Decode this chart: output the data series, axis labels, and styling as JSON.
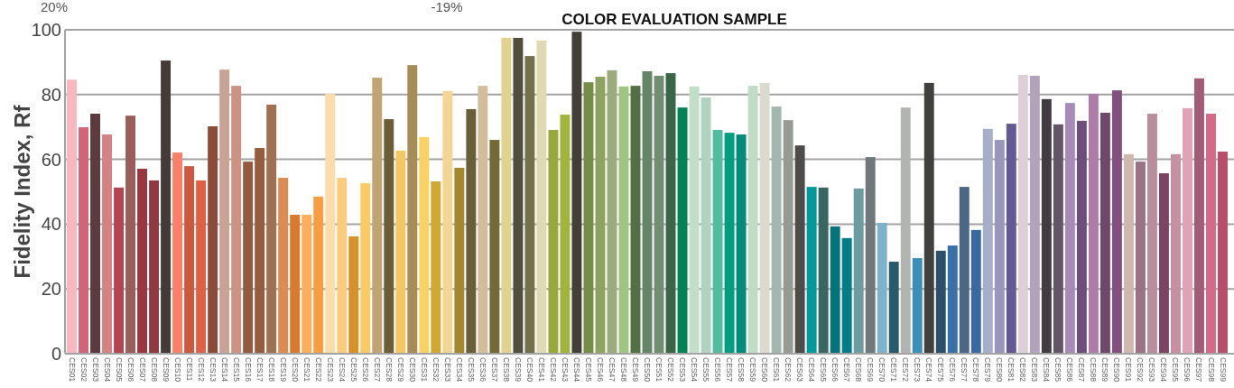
{
  "chart_data": {
    "type": "bar",
    "title": "COLOR EVALUATION SAMPLE",
    "ylabel": "Fidelity Index, Rf",
    "annotations": [
      "20%",
      "-19%"
    ],
    "categories": [
      "CES01",
      "CES02",
      "CES03",
      "CES04",
      "CES05",
      "CES06",
      "CES07",
      "CES08",
      "CES09",
      "CES10",
      "CES11",
      "CES12",
      "CES13",
      "CES14",
      "CES15",
      "CES16",
      "CES17",
      "CES18",
      "CES19",
      "CES20",
      "CES21",
      "CES22",
      "CES23",
      "CES24",
      "CES25",
      "CES26",
      "CES27",
      "CES28",
      "CES29",
      "CES30",
      "CES31",
      "CES32",
      "CES33",
      "CES34",
      "CES35",
      "CES36",
      "CES37",
      "CES38",
      "CES39",
      "CES40",
      "CES41",
      "CES42",
      "CES43",
      "CES44",
      "CES45",
      "CES46",
      "CES47",
      "CES48",
      "CES49",
      "CES50",
      "CES51",
      "CES52",
      "CES53",
      "CES54",
      "CES55",
      "CES56",
      "CES57",
      "CES58",
      "CES59",
      "CES60",
      "CES61",
      "CES62",
      "CES63",
      "CES64",
      "CES65",
      "CES66",
      "CES67",
      "CES68",
      "CES69",
      "CES70",
      "CES71",
      "CES72",
      "CES73",
      "CES74",
      "CES75",
      "CES76",
      "CES77",
      "CES78",
      "CES79",
      "CES80",
      "CES81",
      "CES82",
      "CES83",
      "CES84",
      "CES85",
      "CES86",
      "CES87",
      "CES88",
      "CES89",
      "CES90",
      "CES91",
      "CES92",
      "CES93",
      "CES94",
      "CES95",
      "CES96",
      "CES97",
      "CES98",
      "CES99"
    ],
    "values": [
      84.6,
      69.9,
      74.1,
      67.7,
      51.3,
      73.5,
      57.1,
      53.5,
      90.5,
      62.1,
      57.9,
      53.5,
      70.2,
      87.7,
      82.7,
      59.3,
      63.5,
      76.9,
      54.3,
      42.9,
      42.9,
      48.5,
      80.2,
      54.3,
      36.2,
      52.6,
      85.2,
      72.4,
      62.7,
      89.1,
      66.9,
      53.2,
      81.1,
      57.4,
      75.5,
      82.7,
      66.0,
      97.5,
      97.5,
      91.9,
      96.7,
      69.1,
      73.8,
      99.4,
      83.8,
      85.5,
      87.5,
      82.5,
      82.7,
      87.2,
      85.8,
      86.6,
      76.0,
      82.5,
      79.1,
      69.1,
      68.2,
      67.7,
      82.7,
      83.6,
      76.3,
      72.1,
      64.3,
      51.5,
      51.3,
      39.3,
      35.7,
      51.0,
      60.7,
      40.4,
      28.4,
      76.0,
      29.5,
      83.6,
      31.8,
      33.4,
      51.5,
      38.2,
      69.4,
      66.0,
      71.0,
      86.1,
      85.8,
      78.6,
      70.8,
      77.4,
      71.9,
      80.2,
      74.4,
      81.3,
      61.6,
      59.3,
      74.1,
      55.7,
      61.6,
      75.8,
      85.0,
      74.1,
      62.4
    ],
    "colors": [
      "#f9b8c0",
      "#d06478",
      "#5c3a3e",
      "#d68282",
      "#b44452",
      "#9a5e5a",
      "#9a3640",
      "#8e3a40",
      "#443a38",
      "#fc8068",
      "#cc5840",
      "#e06046",
      "#8a4c38",
      "#c8a294",
      "#cc9480",
      "#925a40",
      "#965c3e",
      "#a07052",
      "#dc8c52",
      "#da7a2e",
      "#fcae58",
      "#f89e42",
      "#fcdcaa",
      "#fccc7c",
      "#d89028",
      "#fcca64",
      "#c0a474",
      "#6c5c38",
      "#f6c660",
      "#a88c58",
      "#f8d262",
      "#d0a834",
      "#f4d694",
      "#a4882e",
      "#6a5e38",
      "#d2bc9a",
      "#746a38",
      "#e2d290",
      "#524e3e",
      "#74704c",
      "#e0dab4",
      "#98a83a",
      "#a2b43c",
      "#423e38",
      "#748e48",
      "#8ea262",
      "#9caa7c",
      "#a0c482",
      "#527042",
      "#648666",
      "#728e72",
      "#3a6646",
      "#008456",
      "#c2dec6",
      "#b0d2c0",
      "#50be9e",
      "#009e80",
      "#008c78",
      "#c0dcc8",
      "#dadace",
      "#a2b8ae",
      "#989a92",
      "#4e4c48",
      "#009a9c",
      "#3a6662",
      "#047478",
      "#027c88",
      "#6c9ca0",
      "#70787c",
      "#7cb2ca",
      "#285a6a",
      "#b2b4b2",
      "#3890b8",
      "#40403e",
      "#2c506a",
      "#3870a8",
      "#4c6686",
      "#3a68a0",
      "#a6aec8",
      "#9896bc",
      "#625a90",
      "#dcd0d6",
      "#b2a2bc",
      "#423c42",
      "#625666",
      "#a68ab8",
      "#6c4e7a",
      "#ae7ca8",
      "#6e4868",
      "#82507e",
      "#ceb8b0",
      "#9a7284",
      "#b88e9c",
      "#7c4462",
      "#c88ea2",
      "#e0a2b4",
      "#a45c76",
      "#d46a88",
      "#b84e6a"
    ],
    "ylim": [
      0,
      100
    ],
    "yticks": [
      0,
      20,
      40,
      60,
      80,
      100
    ],
    "grid": "y"
  }
}
